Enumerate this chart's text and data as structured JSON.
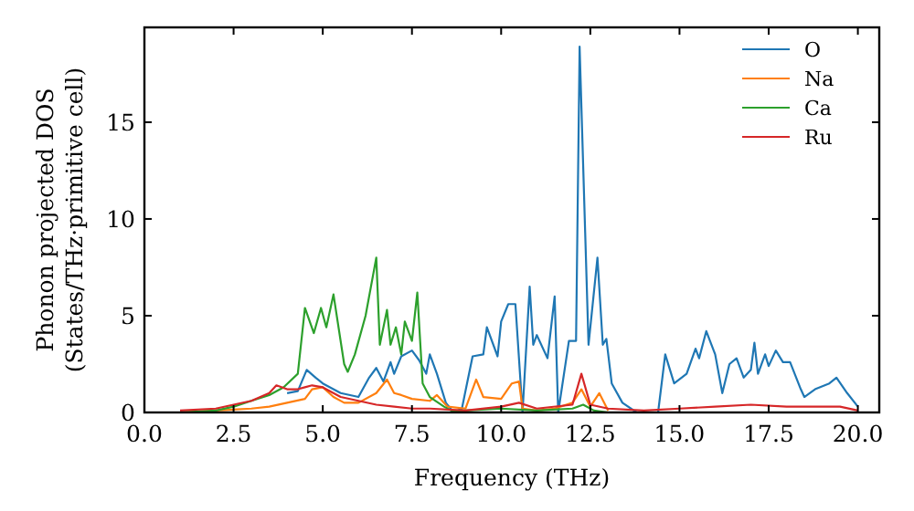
{
  "chart_data": {
    "type": "line",
    "xlabel": "Frequency (THz)",
    "ylabel": "Phonon projected DOS\n(States/THz·primitive cell)",
    "xlim": [
      0,
      20.6
    ],
    "ylim": [
      0,
      19.9
    ],
    "xticks": [
      {
        "value": 0,
        "label": "0.0"
      },
      {
        "value": 2.5,
        "label": "2.5"
      },
      {
        "value": 5,
        "label": "5.0"
      },
      {
        "value": 7.5,
        "label": "7.5"
      },
      {
        "value": 10,
        "label": "10.0"
      },
      {
        "value": 12.5,
        "label": "12.5"
      },
      {
        "value": 15,
        "label": "15.0"
      },
      {
        "value": 17.5,
        "label": "17.5"
      },
      {
        "value": 20,
        "label": "20.0"
      }
    ],
    "yticks": [
      0,
      5,
      10,
      15
    ],
    "legend": "top right",
    "grid": false,
    "series": [
      {
        "name": "O",
        "color": "#1f77b4",
        "x": [
          4,
          4.3,
          4.55,
          4.8,
          5,
          5.5,
          6,
          6.3,
          6.5,
          6.7,
          6.9,
          7,
          7.2,
          7.5,
          7.7,
          7.9,
          8,
          8.2,
          8.45,
          8.67,
          8.9,
          9.2,
          9.5,
          9.6,
          9.9,
          10,
          10.2,
          10.4,
          10.6,
          10.8,
          10.9,
          11,
          11.3,
          11.5,
          11.6,
          11.9,
          12.1,
          12.2,
          12.45,
          12.7,
          12.85,
          12.95,
          13.1,
          13.4,
          13.8,
          14.4,
          14.6,
          14.85,
          15.2,
          15.45,
          15.55,
          15.75,
          16,
          16.2,
          16.4,
          16.6,
          16.8,
          17,
          17.1,
          17.2,
          17.4,
          17.5,
          17.7,
          17.9,
          18.1,
          18.4,
          18.5,
          18.8,
          19.2,
          19.4,
          19.7,
          20
        ],
        "values": [
          1,
          1.1,
          2.2,
          1.8,
          1.5,
          1,
          0.8,
          1.8,
          2.3,
          1.6,
          2.6,
          2,
          2.9,
          3.2,
          2.7,
          2,
          3,
          2,
          0.5,
          0,
          0.2,
          2.9,
          3,
          4.4,
          2.9,
          4.7,
          5.6,
          5.6,
          0,
          6.5,
          3.5,
          4,
          2.8,
          6,
          0,
          3.7,
          3.7,
          18.9,
          3.5,
          8,
          3.5,
          3.8,
          1.5,
          0.5,
          0,
          0,
          3,
          1.5,
          2,
          3.3,
          2.8,
          4.2,
          3,
          1,
          2.5,
          2.8,
          1.8,
          2.2,
          3.6,
          2,
          3,
          2.4,
          3.2,
          2.6,
          2.6,
          1.2,
          0.8,
          1.2,
          1.5,
          1.8,
          1,
          0.3
        ]
      },
      {
        "name": "Na",
        "color": "#ff7f0e",
        "x": [
          1,
          2,
          3,
          3.5,
          4,
          4.5,
          4.7,
          5,
          5.3,
          5.6,
          6,
          6.5,
          6.8,
          7,
          7.2,
          7.5,
          8,
          8.2,
          8.5,
          9,
          9.3,
          9.5,
          10,
          10.3,
          10.5,
          10.6,
          11,
          11.5,
          12,
          12.25,
          12.5,
          12.75,
          13
        ],
        "values": [
          0,
          0.1,
          0.2,
          0.3,
          0.5,
          0.7,
          1.2,
          1.3,
          0.8,
          0.5,
          0.5,
          1,
          1.7,
          1,
          0.9,
          0.7,
          0.6,
          0.9,
          0.3,
          0.2,
          1.7,
          0.8,
          0.7,
          1.5,
          1.6,
          0.2,
          0.1,
          0.2,
          0.5,
          1.2,
          0.3,
          1,
          0.1
        ]
      },
      {
        "name": "Ca",
        "color": "#2ca02c",
        "x": [
          1,
          2,
          2.5,
          3,
          3.5,
          3.9,
          4.3,
          4.5,
          4.75,
          4.95,
          5.1,
          5.3,
          5.6,
          5.7,
          5.9,
          6.2,
          6.5,
          6.6,
          6.8,
          6.9,
          7.05,
          7.2,
          7.3,
          7.5,
          7.65,
          7.8,
          8,
          8.4,
          8.6,
          9,
          10,
          11,
          12,
          12.3,
          12.6,
          13
        ],
        "values": [
          0,
          0.1,
          0.3,
          0.6,
          0.9,
          1.3,
          2,
          5.4,
          4.1,
          5.4,
          4.4,
          6.1,
          2.5,
          2.1,
          3,
          5,
          8,
          3.5,
          5.3,
          3.5,
          4.4,
          3,
          4.7,
          3.7,
          6.2,
          1.5,
          0.8,
          0.3,
          0.1,
          0.1,
          0.2,
          0.1,
          0.2,
          0.4,
          0.1,
          0
        ]
      },
      {
        "name": "Ru",
        "color": "#d62728",
        "x": [
          1,
          2,
          2.5,
          3,
          3.5,
          3.7,
          4,
          4.3,
          4.5,
          4.7,
          5,
          5.5,
          6,
          6.5,
          7,
          7.5,
          8,
          9,
          10,
          10.5,
          11,
          12,
          12.25,
          12.5,
          13,
          14,
          15,
          16,
          17,
          18,
          19.5,
          20
        ],
        "values": [
          0.1,
          0.2,
          0.4,
          0.6,
          1,
          1.4,
          1.2,
          1.2,
          1.3,
          1.4,
          1.3,
          0.8,
          0.6,
          0.4,
          0.3,
          0.2,
          0.2,
          0.1,
          0.3,
          0.5,
          0.2,
          0.4,
          2,
          0.4,
          0.2,
          0.1,
          0.2,
          0.3,
          0.4,
          0.3,
          0.3,
          0.1
        ]
      }
    ]
  }
}
